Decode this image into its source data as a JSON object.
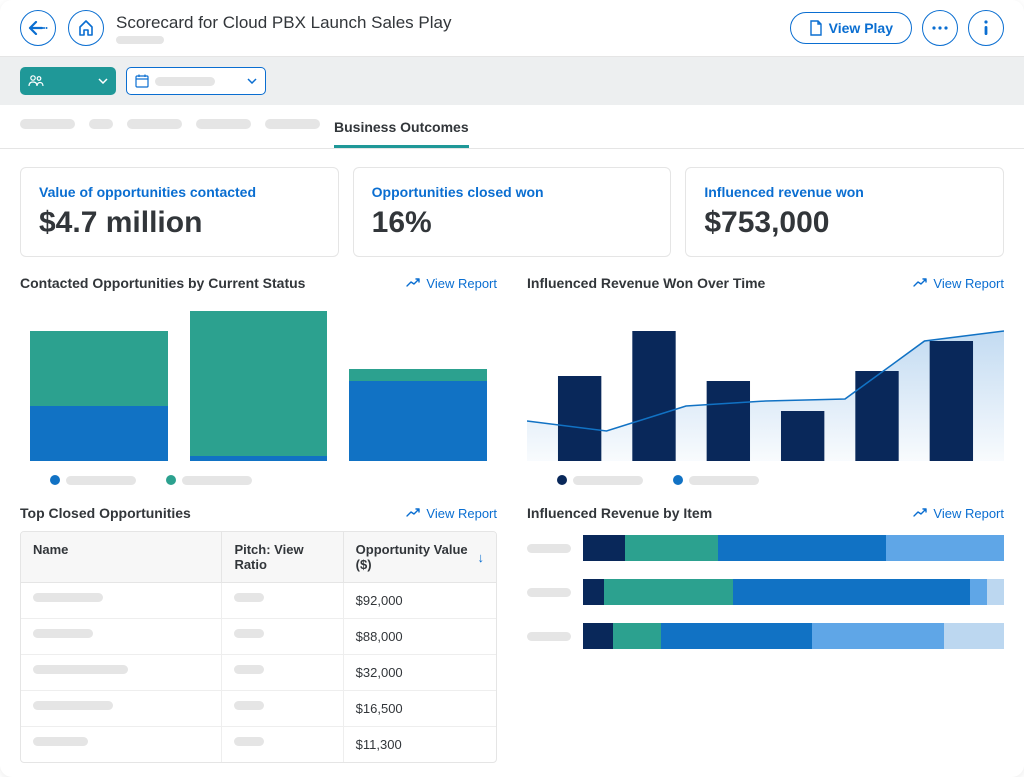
{
  "header": {
    "title": "Scorecard for Cloud PBX Launch Sales Play",
    "view_play_label": "View Play"
  },
  "tabs": {
    "active_label": "Business Outcomes"
  },
  "kpis": [
    {
      "label": "Value of opportunities contacted",
      "value": "$4.7 million"
    },
    {
      "label": "Opportunities closed won",
      "value": "16%"
    },
    {
      "label": "Influenced revenue won",
      "value": "$753,000"
    }
  ],
  "colors": {
    "teal": "#2ca18f",
    "blue": "#1172c4",
    "navy": "#09285a",
    "lightblue": "#5fa6e7",
    "paleblue": "#bcd7f0",
    "grid": "#e5e5e5"
  },
  "chart_status": {
    "title": "Contacted Opportunities by Current Status",
    "view_label": "View Report",
    "type": "stacked-bar",
    "bars": [
      {
        "segments": [
          {
            "color": "#1172c4",
            "value": 55
          },
          {
            "color": "#2ca18f",
            "value": 75
          }
        ]
      },
      {
        "segments": [
          {
            "color": "#1172c4",
            "value": 5
          },
          {
            "color": "#2ca18f",
            "value": 145
          }
        ]
      },
      {
        "segments": [
          {
            "color": "#1172c4",
            "value": 80
          },
          {
            "color": "#2ca18f",
            "value": 12
          }
        ]
      }
    ],
    "max": 160,
    "legend": [
      {
        "color": "#1172c4"
      },
      {
        "color": "#2ca18f"
      }
    ]
  },
  "chart_revenue_time": {
    "title": "Influenced Revenue Won Over Time",
    "view_label": "View Report",
    "type": "bar-area-combo",
    "bars": [
      85,
      130,
      80,
      50,
      90,
      120
    ],
    "bar_color": "#09285a",
    "area_points": [
      40,
      30,
      55,
      60,
      62,
      120,
      130
    ],
    "area_fill": "#bcd7f0",
    "area_stroke": "#1172c4",
    "max": 160,
    "legend": [
      {
        "color": "#09285a"
      },
      {
        "color": "#1172c4"
      }
    ]
  },
  "table_top_closed": {
    "title": "Top Closed Opportunities",
    "view_label": "View Report",
    "columns": [
      "Name",
      "Pitch: View Ratio",
      "Opportunity Value ($)"
    ],
    "sort_col": 2,
    "sort_dir": "desc",
    "rows": [
      {
        "value": "$92,000"
      },
      {
        "value": "$88,000"
      },
      {
        "value": "$32,000"
      },
      {
        "value": "$16,500"
      },
      {
        "value": "$11,300"
      }
    ]
  },
  "chart_revenue_item": {
    "title": "Influenced Revenue by Item",
    "view_label": "View Report",
    "type": "stacked-hbar",
    "rows": [
      {
        "total_pct": 100,
        "segments": [
          {
            "color": "#09285a",
            "value": 10
          },
          {
            "color": "#2ca18f",
            "value": 22
          },
          {
            "color": "#1172c4",
            "value": 40
          },
          {
            "color": "#5fa6e7",
            "value": 28
          }
        ]
      },
      {
        "total_pct": 98,
        "segments": [
          {
            "color": "#09285a",
            "value": 5
          },
          {
            "color": "#2ca18f",
            "value": 30
          },
          {
            "color": "#1172c4",
            "value": 55
          },
          {
            "color": "#5fa6e7",
            "value": 4
          },
          {
            "color": "#bcd7f0",
            "value": 4
          }
        ]
      },
      {
        "total_pct": 70,
        "segments": [
          {
            "color": "#09285a",
            "value": 5
          },
          {
            "color": "#2ca18f",
            "value": 8
          },
          {
            "color": "#1172c4",
            "value": 25
          },
          {
            "color": "#5fa6e7",
            "value": 22
          },
          {
            "color": "#bcd7f0",
            "value": 10
          }
        ]
      }
    ]
  }
}
